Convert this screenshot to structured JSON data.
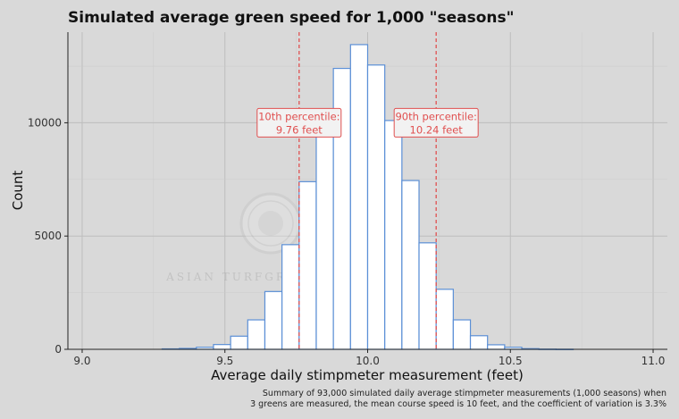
{
  "chart_data": {
    "type": "bar",
    "title": "Simulated average green speed for 1,000 \"seasons\"",
    "xlabel": "Average daily stimpmeter measurement (feet)",
    "ylabel": "Count",
    "xlim": [
      8.95,
      11.05
    ],
    "ylim": [
      0,
      14000
    ],
    "xticks": [
      "9.0",
      "9.5",
      "10.0",
      "10.5",
      "11.0"
    ],
    "yticks": [
      "0",
      "5000",
      "10000"
    ],
    "grid": true,
    "bin_width": 0.06,
    "bin_starts": [
      9.28,
      9.34,
      9.4,
      9.46,
      9.52,
      9.58,
      9.64,
      9.7,
      9.76,
      9.82,
      9.88,
      9.94,
      10.0,
      10.06,
      10.12,
      10.18,
      10.24,
      10.3,
      10.36,
      10.42,
      10.48,
      10.54,
      10.6,
      10.66
    ],
    "values": [
      20,
      40,
      90,
      210,
      580,
      1300,
      2550,
      4620,
      7400,
      10000,
      12400,
      13450,
      12550,
      10100,
      7450,
      4700,
      2650,
      1300,
      600,
      200,
      90,
      30,
      10,
      5
    ],
    "bar_color": "#5b8fd6",
    "percentile_color": "#e05050",
    "percentiles": [
      {
        "x": 9.76,
        "label_line1": "10th percentile:",
        "label_line2": "9.76 feet",
        "label_y": 10000
      },
      {
        "x": 10.24,
        "label_line1": "90th percentile:",
        "label_line2": "10.24 feet",
        "label_y": 10000
      }
    ],
    "caption_line1": "Summary of 93,000 simulated daily average stimpmeter measurements (1,000 seasons) when",
    "caption_line2": "3 greens are measured, the mean course speed is 10 feet, and the coefficient of variation is 3.3%"
  },
  "watermark": {
    "text": "ASIAN TURFGRASS CENTER",
    "icon": "turfgrass-seal-icon"
  }
}
